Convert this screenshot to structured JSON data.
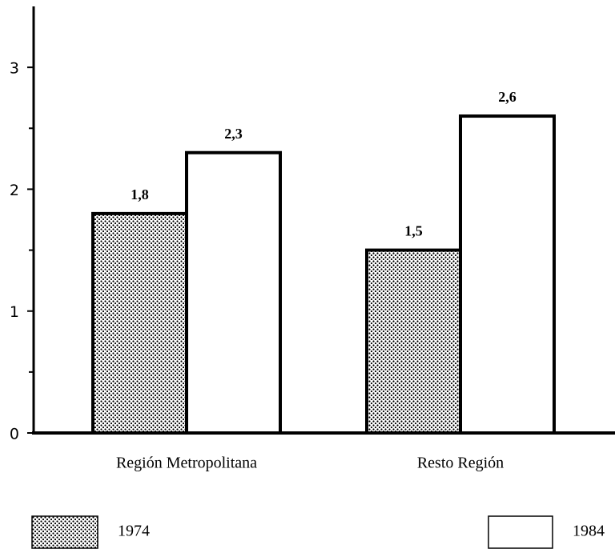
{
  "chart_data": {
    "type": "bar",
    "categories": [
      "Región Metropolitana",
      "Resto Región"
    ],
    "series": [
      {
        "name": "1974",
        "color": "#ffffff",
        "pattern": "dots",
        "values": [
          1.8,
          1.5
        ],
        "value_labels": [
          "1,8",
          "1,5"
        ]
      },
      {
        "name": "1984",
        "color": "#ffffff",
        "values": [
          2.3,
          2.6
        ],
        "value_labels": [
          "2,3",
          "2,6"
        ]
      }
    ],
    "ylim": [
      0,
      3.5
    ],
    "yticks": [
      0,
      1,
      2,
      3
    ],
    "minor_yticks": [
      0.5,
      1.5,
      2.5
    ],
    "grid": false,
    "legend": "bottom"
  }
}
